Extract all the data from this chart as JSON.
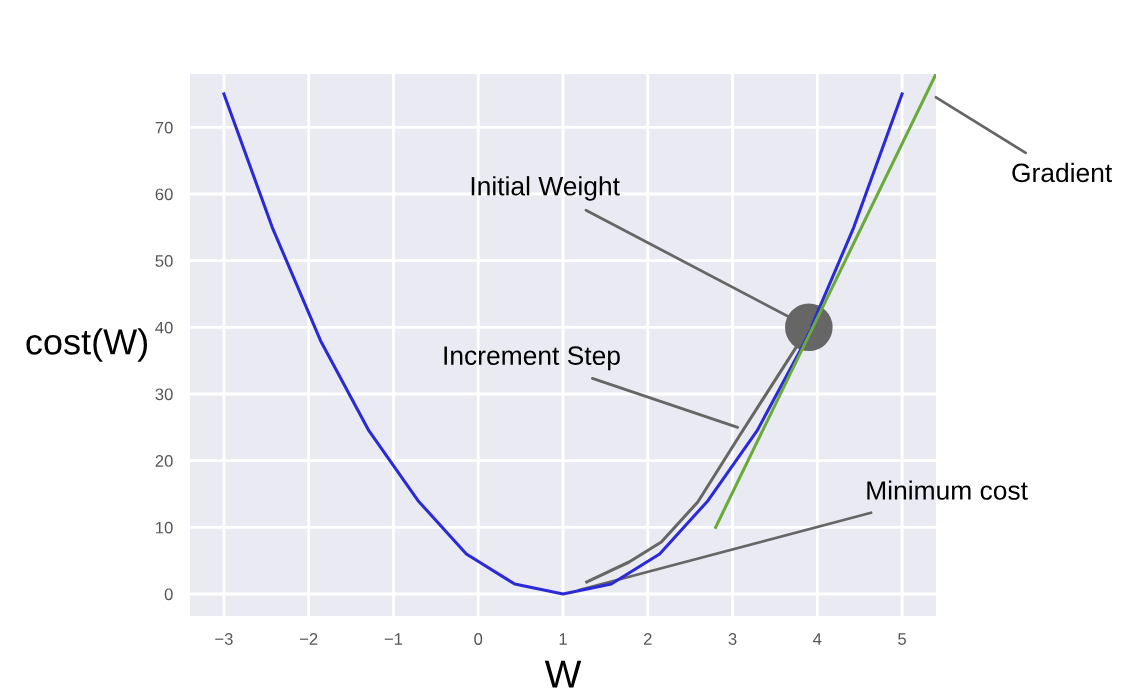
{
  "chart_data": {
    "type": "line",
    "xlabel": "W",
    "ylabel": "cost(W)",
    "xlim": [
      -3.4,
      5.4
    ],
    "ylim": [
      -3.3,
      78
    ],
    "xticks": [
      {
        "value": -3,
        "label": "−3"
      },
      {
        "value": -2,
        "label": "−2"
      },
      {
        "value": -1,
        "label": "−1"
      },
      0,
      1,
      2,
      3,
      4,
      5
    ],
    "yticks": [
      0,
      10,
      20,
      30,
      40,
      50,
      60,
      70
    ],
    "grid": true,
    "legend": false,
    "series": [
      {
        "color": "#2a2ad6",
        "x": [
          -3,
          -2.43,
          -1.86,
          -1.29,
          -0.71,
          -0.14,
          0.43,
          1.0,
          1.57,
          2.14,
          2.71,
          3.29,
          3.86,
          4.43,
          5
        ],
        "values": [
          75,
          55,
          38,
          24.5,
          14,
          6,
          1.5,
          0,
          1.5,
          6,
          14,
          24.5,
          38,
          55,
          75
        ]
      },
      {
        "color": "#6aaa3a",
        "x": [
          2.8,
          5.4
        ],
        "values": [
          10,
          78
        ]
      },
      {
        "color": "#666666",
        "x": [
          3.9,
          3.08,
          2.59,
          2.16,
          1.78,
          1.28
        ],
        "values": [
          40,
          23.7,
          13.8,
          7.8,
          4.8,
          1.8
        ]
      },
      {
        "type": "scatter",
        "color": "#666666",
        "x": [
          3.9
        ],
        "values": [
          40
        ]
      }
    ],
    "annotations": [
      {
        "text": "Initial Weight",
        "x": 3.9,
        "y": 40
      },
      {
        "text": "Increment Step",
        "x": 3.06,
        "y": 25
      },
      {
        "text": "Minimum cost",
        "x": 1.19,
        "y": 0.6
      },
      {
        "text": "Gradient",
        "x": 5.4,
        "y": 74.5
      }
    ]
  }
}
